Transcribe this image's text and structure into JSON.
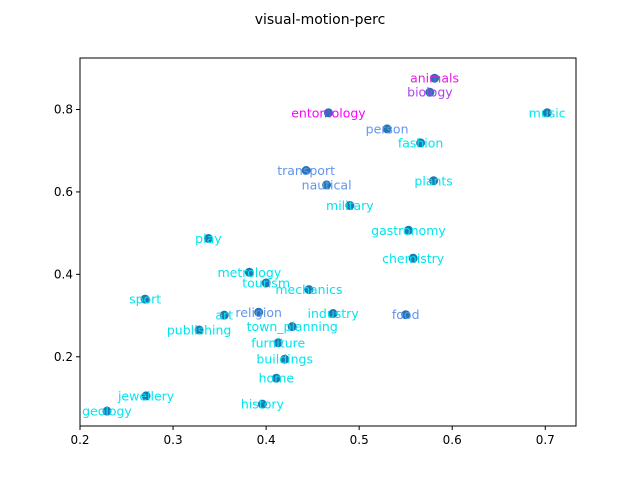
{
  "chart_data": {
    "type": "scatter",
    "title": "visual-motion-perc",
    "xlabel": "",
    "ylabel": "",
    "xlim": [
      0.2,
      0.733
    ],
    "ylim": [
      0.032,
      0.925
    ],
    "xticks": [
      0.2,
      0.3,
      0.4,
      0.5,
      0.6,
      0.7
    ],
    "xtick_labels": [
      "0.2",
      "0.3",
      "0.4",
      "0.5",
      "0.6",
      "0.7"
    ],
    "yticks": [
      0.2,
      0.4,
      0.6,
      0.8
    ],
    "ytick_labels": [
      "0.2",
      "0.4",
      "0.6",
      "0.8"
    ],
    "grid": false,
    "legend": "none",
    "marker_color": "#1f77b4",
    "points": [
      {
        "label": "animals",
        "x": 0.581,
        "y": 0.876,
        "color": "#e020e0"
      },
      {
        "label": "biology",
        "x": 0.576,
        "y": 0.842,
        "color": "#b040f0"
      },
      {
        "label": "entomology",
        "x": 0.467,
        "y": 0.792,
        "color": "#ff00ff"
      },
      {
        "label": "music",
        "x": 0.702,
        "y": 0.792,
        "color": "#00e5ee"
      },
      {
        "label": "person",
        "x": 0.53,
        "y": 0.753,
        "color": "#6495ed"
      },
      {
        "label": "fashion",
        "x": 0.566,
        "y": 0.719,
        "color": "#00e5ee"
      },
      {
        "label": "transport",
        "x": 0.443,
        "y": 0.652,
        "color": "#6495ed"
      },
      {
        "label": "nautical",
        "x": 0.465,
        "y": 0.617,
        "color": "#6495ed"
      },
      {
        "label": "plants",
        "x": 0.58,
        "y": 0.627,
        "color": "#00e5ee"
      },
      {
        "label": "military",
        "x": 0.49,
        "y": 0.567,
        "color": "#00e5ee"
      },
      {
        "label": "gastronomy",
        "x": 0.553,
        "y": 0.507,
        "color": "#00e5ee"
      },
      {
        "label": "play",
        "x": 0.338,
        "y": 0.487,
        "color": "#00e5ee"
      },
      {
        "label": "chemistry",
        "x": 0.558,
        "y": 0.439,
        "color": "#00e5ee"
      },
      {
        "label": "metrology",
        "x": 0.382,
        "y": 0.405,
        "color": "#00e5ee"
      },
      {
        "label": "tourism",
        "x": 0.4,
        "y": 0.379,
        "color": "#00e5ee"
      },
      {
        "label": "mechanics",
        "x": 0.446,
        "y": 0.363,
        "color": "#00e5ee"
      },
      {
        "label": "sport",
        "x": 0.27,
        "y": 0.34,
        "color": "#00e5ee"
      },
      {
        "label": "religion",
        "x": 0.392,
        "y": 0.308,
        "color": "#6495ed"
      },
      {
        "label": "art",
        "x": 0.355,
        "y": 0.301,
        "color": "#00e5ee"
      },
      {
        "label": "industry",
        "x": 0.472,
        "y": 0.305,
        "color": "#00e5ee"
      },
      {
        "label": "food",
        "x": 0.55,
        "y": 0.302,
        "color": "#6495ed"
      },
      {
        "label": "publishing",
        "x": 0.328,
        "y": 0.265,
        "color": "#00e5ee"
      },
      {
        "label": "town_planning",
        "x": 0.428,
        "y": 0.273,
        "color": "#00e5ee"
      },
      {
        "label": "furniture",
        "x": 0.413,
        "y": 0.234,
        "color": "#00e5ee"
      },
      {
        "label": "buildings",
        "x": 0.42,
        "y": 0.194,
        "color": "#00e5ee"
      },
      {
        "label": "home",
        "x": 0.411,
        "y": 0.148,
        "color": "#00e5ee"
      },
      {
        "label": "jewellery",
        "x": 0.271,
        "y": 0.105,
        "color": "#00e5ee"
      },
      {
        "label": "history",
        "x": 0.396,
        "y": 0.085,
        "color": "#00e5ee"
      },
      {
        "label": "geology",
        "x": 0.229,
        "y": 0.068,
        "color": "#00e5ee"
      }
    ]
  }
}
